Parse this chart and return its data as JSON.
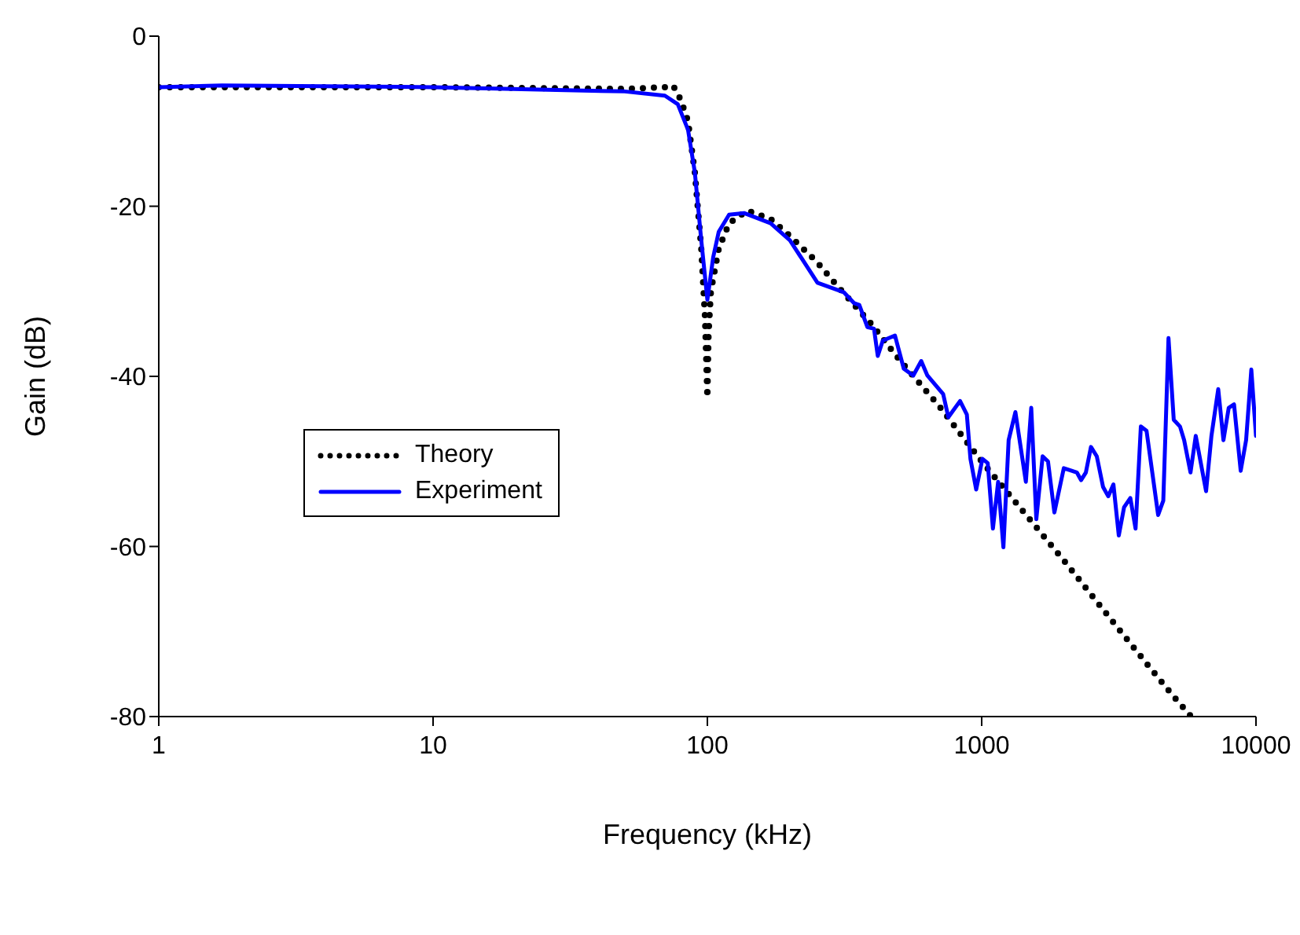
{
  "chart_data": {
    "type": "line",
    "xlabel": "Frequency (kHz)",
    "ylabel": "Gain (dB)",
    "log": "x",
    "xlim": [
      1,
      10000
    ],
    "xticks": [
      1,
      10,
      100,
      1000,
      10000
    ],
    "ylim": [
      -80,
      0
    ],
    "yticks": [
      -80,
      -60,
      -40,
      -20,
      0
    ],
    "legend": "left",
    "series": [
      {
        "name": "Theory",
        "color": "#000000",
        "line_style": "dotted",
        "x": [
          1,
          10,
          50,
          70,
          75,
          80,
          85,
          90,
          95,
          98,
          100,
          101,
          103,
          110,
          120,
          140,
          170,
          200,
          250,
          300,
          400,
          480,
          500,
          700,
          1000,
          2000,
          3000,
          4000,
          5000,
          5800
        ],
        "values": [
          -6,
          -6,
          -6.2,
          -6,
          -5.8,
          -7.5,
          -10,
          -16,
          -25,
          -33,
          -42.5,
          -35,
          -30,
          -25,
          -22,
          -20.5,
          -21.5,
          -23.5,
          -26.5,
          -29.5,
          -34,
          -37.3,
          -38,
          -43.5,
          -50,
          -61.7,
          -68.8,
          -73.8,
          -77.6,
          -80
        ]
      },
      {
        "name": "Experiment",
        "color": "#0000ff",
        "line_style": "solid",
        "x": [
          1,
          1.7,
          10,
          50,
          70,
          78,
          85,
          90,
          95,
          100,
          105,
          110,
          120,
          136,
          170,
          200,
          252,
          314,
          343,
          358,
          383,
          405,
          418,
          436,
          483,
          520,
          563,
          602,
          634,
          724,
          756,
          834,
          883,
          910,
          955,
          1006,
          1052,
          1099,
          1148,
          1200,
          1254,
          1327,
          1449,
          1516,
          1582,
          1668,
          1745,
          1841,
          1992,
          2128,
          2223,
          2303,
          2398,
          2503,
          2628,
          2770,
          2893,
          3022,
          3161,
          3304,
          3483,
          3639,
          3804,
          3990,
          4398,
          4593,
          4798,
          5014,
          5285,
          5472,
          5771,
          6031,
          6577,
          6880,
          7284,
          7610,
          7954,
          8318,
          8796,
          9204,
          9616,
          10000
        ],
        "values": [
          -6,
          -5.8,
          -6,
          -6.5,
          -7,
          -8,
          -11,
          -16,
          -24,
          -31,
          -26,
          -23,
          -21,
          -20.8,
          -22,
          -24,
          -29,
          -30.1,
          -31.4,
          -31.6,
          -34.2,
          -34.4,
          -37.6,
          -35.8,
          -35.2,
          -39.1,
          -39.9,
          -38.2,
          -39.9,
          -42.1,
          -44.8,
          -42.9,
          -44.5,
          -49.7,
          -53.3,
          -49.7,
          -50.2,
          -57.9,
          -52.4,
          -60.1,
          -47.5,
          -44.2,
          -52.4,
          -43.7,
          -56.8,
          -49.4,
          -50,
          -56,
          -50.8,
          -51.1,
          -51.3,
          -52.2,
          -51.3,
          -48.3,
          -49.4,
          -53,
          -54.1,
          -52.7,
          -58.7,
          -55.4,
          -54.3,
          -57.9,
          -45.9,
          -46.4,
          -56.3,
          -54.6,
          -35.5,
          -45.1,
          -45.9,
          -47.5,
          -51.3,
          -47,
          -53.5,
          -47,
          -41.5,
          -47.5,
          -43.7,
          -43.3,
          -51.1,
          -47.5,
          -39.2,
          -47
        ]
      }
    ]
  }
}
